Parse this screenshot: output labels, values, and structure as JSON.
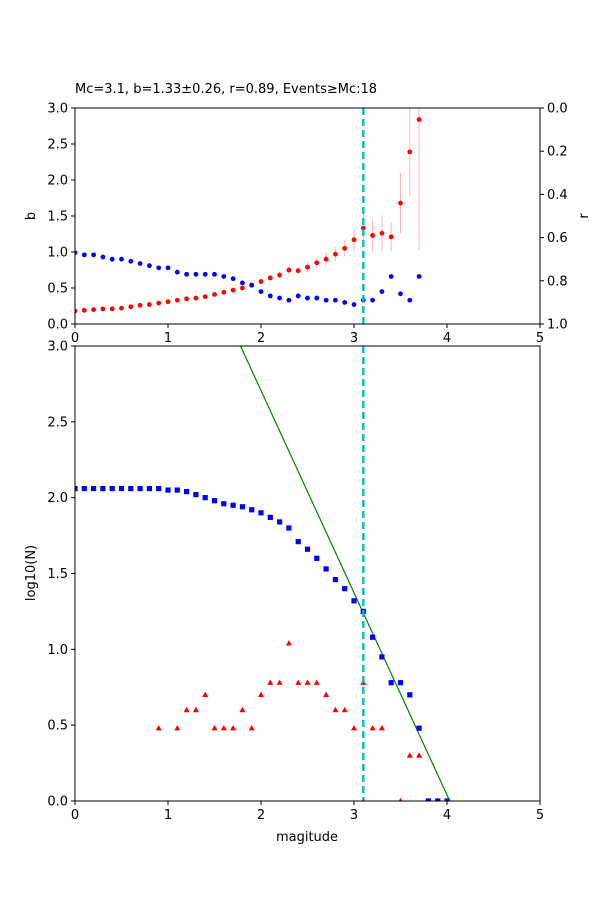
{
  "figure_title": "Mc=3.1, b=1.33±0.26, r=0.89, Events≥Mc:18",
  "chart_data": [
    {
      "type": "scatter",
      "panel": "b-value and correlation vs magnitude",
      "title": "Mc=3.1, b=1.33±0.26, r=0.89, Events≥Mc:18",
      "xlabel": "",
      "ylabel": "b",
      "y2label": "r",
      "xlim": [
        0,
        5
      ],
      "ylim": [
        0,
        3
      ],
      "y2lim": [
        0,
        1
      ],
      "y2_inverted": true,
      "xticks": [
        "0",
        "1",
        "2",
        "3",
        "4",
        "5"
      ],
      "yticks": [
        "0.0",
        "0.5",
        "1.0",
        "1.5",
        "2.0",
        "2.5",
        "3.0"
      ],
      "y2ticks": [
        "0.0",
        "0.2",
        "0.4",
        "0.6",
        "0.8",
        "1.0"
      ],
      "mc_line": 3.1,
      "series": [
        {
          "name": "",
          "axis": "left",
          "color": "#ff0000",
          "marker": "circle",
          "x": [
            0.0,
            0.1,
            0.2,
            0.3,
            0.4,
            0.5,
            0.6,
            0.7,
            0.8,
            0.9,
            1.0,
            1.1,
            1.2,
            1.3,
            1.4,
            1.5,
            1.6,
            1.7,
            1.8,
            1.9,
            2.0,
            2.1,
            2.2,
            2.3,
            2.4,
            2.5,
            2.6,
            2.7,
            2.8,
            2.9,
            3.0,
            3.1,
            3.2,
            3.3,
            3.4,
            3.5,
            3.6,
            3.7
          ],
          "y": [
            0.18,
            0.19,
            0.2,
            0.21,
            0.21,
            0.22,
            0.24,
            0.26,
            0.27,
            0.29,
            0.31,
            0.33,
            0.35,
            0.36,
            0.38,
            0.41,
            0.44,
            0.47,
            0.5,
            0.54,
            0.59,
            0.64,
            0.68,
            0.75,
            0.74,
            0.79,
            0.85,
            0.9,
            0.97,
            1.05,
            1.17,
            1.33,
            1.23,
            1.26,
            1.21,
            1.68,
            2.39,
            2.84
          ],
          "err": [
            0.01,
            0.01,
            0.01,
            0.01,
            0.01,
            0.01,
            0.01,
            0.01,
            0.01,
            0.01,
            0.01,
            0.02,
            0.02,
            0.02,
            0.02,
            0.02,
            0.03,
            0.03,
            0.03,
            0.03,
            0.04,
            0.04,
            0.05,
            0.06,
            0.06,
            0.07,
            0.08,
            0.09,
            0.1,
            0.11,
            0.14,
            0.26,
            0.22,
            0.25,
            0.2,
            0.42,
            0.61,
            1.81
          ]
        },
        {
          "name": "",
          "axis": "right",
          "color": "#0000ff",
          "marker": "circle",
          "x": [
            0.0,
            0.1,
            0.2,
            0.3,
            0.4,
            0.5,
            0.6,
            0.7,
            0.8,
            0.9,
            1.0,
            1.1,
            1.2,
            1.3,
            1.4,
            1.5,
            1.6,
            1.7,
            1.8,
            1.9,
            2.0,
            2.1,
            2.2,
            2.3,
            2.4,
            2.5,
            2.6,
            2.7,
            2.8,
            2.9,
            3.0,
            3.1,
            3.2,
            3.3,
            3.4,
            3.5,
            3.6,
            3.7
          ],
          "y": [
            0.67,
            0.68,
            0.68,
            0.69,
            0.7,
            0.7,
            0.71,
            0.72,
            0.73,
            0.74,
            0.74,
            0.76,
            0.77,
            0.77,
            0.77,
            0.77,
            0.78,
            0.79,
            0.81,
            0.82,
            0.85,
            0.87,
            0.88,
            0.89,
            0.87,
            0.88,
            0.88,
            0.89,
            0.89,
            0.9,
            0.91,
            0.89,
            0.89,
            0.85,
            0.78,
            0.86,
            0.89,
            0.78
          ]
        }
      ]
    },
    {
      "type": "scatter",
      "panel": "frequency-magnitude distribution",
      "title": "",
      "xlabel": "magitude",
      "ylabel": "log10(N)",
      "xlim": [
        0,
        5
      ],
      "ylim": [
        0,
        3
      ],
      "xticks": [
        "0",
        "1",
        "2",
        "3",
        "4",
        "5"
      ],
      "yticks": [
        "0.0",
        "0.5",
        "1.0",
        "1.5",
        "2.0",
        "2.5",
        "3.0"
      ],
      "mc_line": 3.1,
      "fit_line": {
        "color": "#008000",
        "x": [
          1.78,
          4.03
        ],
        "y": [
          3.0,
          0.0
        ]
      },
      "series": [
        {
          "name": "",
          "color": "#0000ff",
          "marker": "square",
          "x": [
            0.0,
            0.1,
            0.2,
            0.3,
            0.4,
            0.5,
            0.6,
            0.7,
            0.8,
            0.9,
            1.0,
            1.1,
            1.2,
            1.3,
            1.4,
            1.5,
            1.6,
            1.7,
            1.8,
            1.9,
            2.0,
            2.1,
            2.2,
            2.3,
            2.4,
            2.5,
            2.6,
            2.7,
            2.8,
            2.9,
            3.0,
            3.1,
            3.2,
            3.3,
            3.4,
            3.5,
            3.6,
            3.7,
            3.8,
            3.9,
            4.0
          ],
          "y": [
            2.06,
            2.06,
            2.06,
            2.06,
            2.06,
            2.06,
            2.06,
            2.06,
            2.06,
            2.06,
            2.05,
            2.05,
            2.04,
            2.02,
            2.0,
            1.98,
            1.96,
            1.95,
            1.94,
            1.92,
            1.9,
            1.87,
            1.84,
            1.8,
            1.71,
            1.66,
            1.6,
            1.53,
            1.46,
            1.4,
            1.32,
            1.25,
            1.08,
            0.95,
            0.78,
            0.78,
            0.7,
            0.48,
            0.0,
            0.0,
            0.0
          ]
        },
        {
          "name": "",
          "color": "#ff0000",
          "marker": "triangle",
          "x": [
            0.9,
            1.1,
            1.2,
            1.3,
            1.4,
            1.5,
            1.6,
            1.7,
            1.8,
            1.9,
            2.0,
            2.1,
            2.2,
            2.3,
            2.4,
            2.5,
            2.6,
            2.7,
            2.8,
            2.9,
            3.0,
            3.1,
            3.2,
            3.3,
            3.5,
            3.6,
            3.7
          ],
          "y": [
            0.48,
            0.48,
            0.6,
            0.6,
            0.7,
            0.48,
            0.48,
            0.48,
            0.6,
            0.48,
            0.7,
            0.78,
            0.78,
            1.04,
            0.78,
            0.78,
            0.78,
            0.7,
            0.6,
            0.6,
            0.48,
            0.78,
            0.48,
            0.48,
            0.0,
            0.3,
            0.3
          ]
        }
      ]
    }
  ]
}
